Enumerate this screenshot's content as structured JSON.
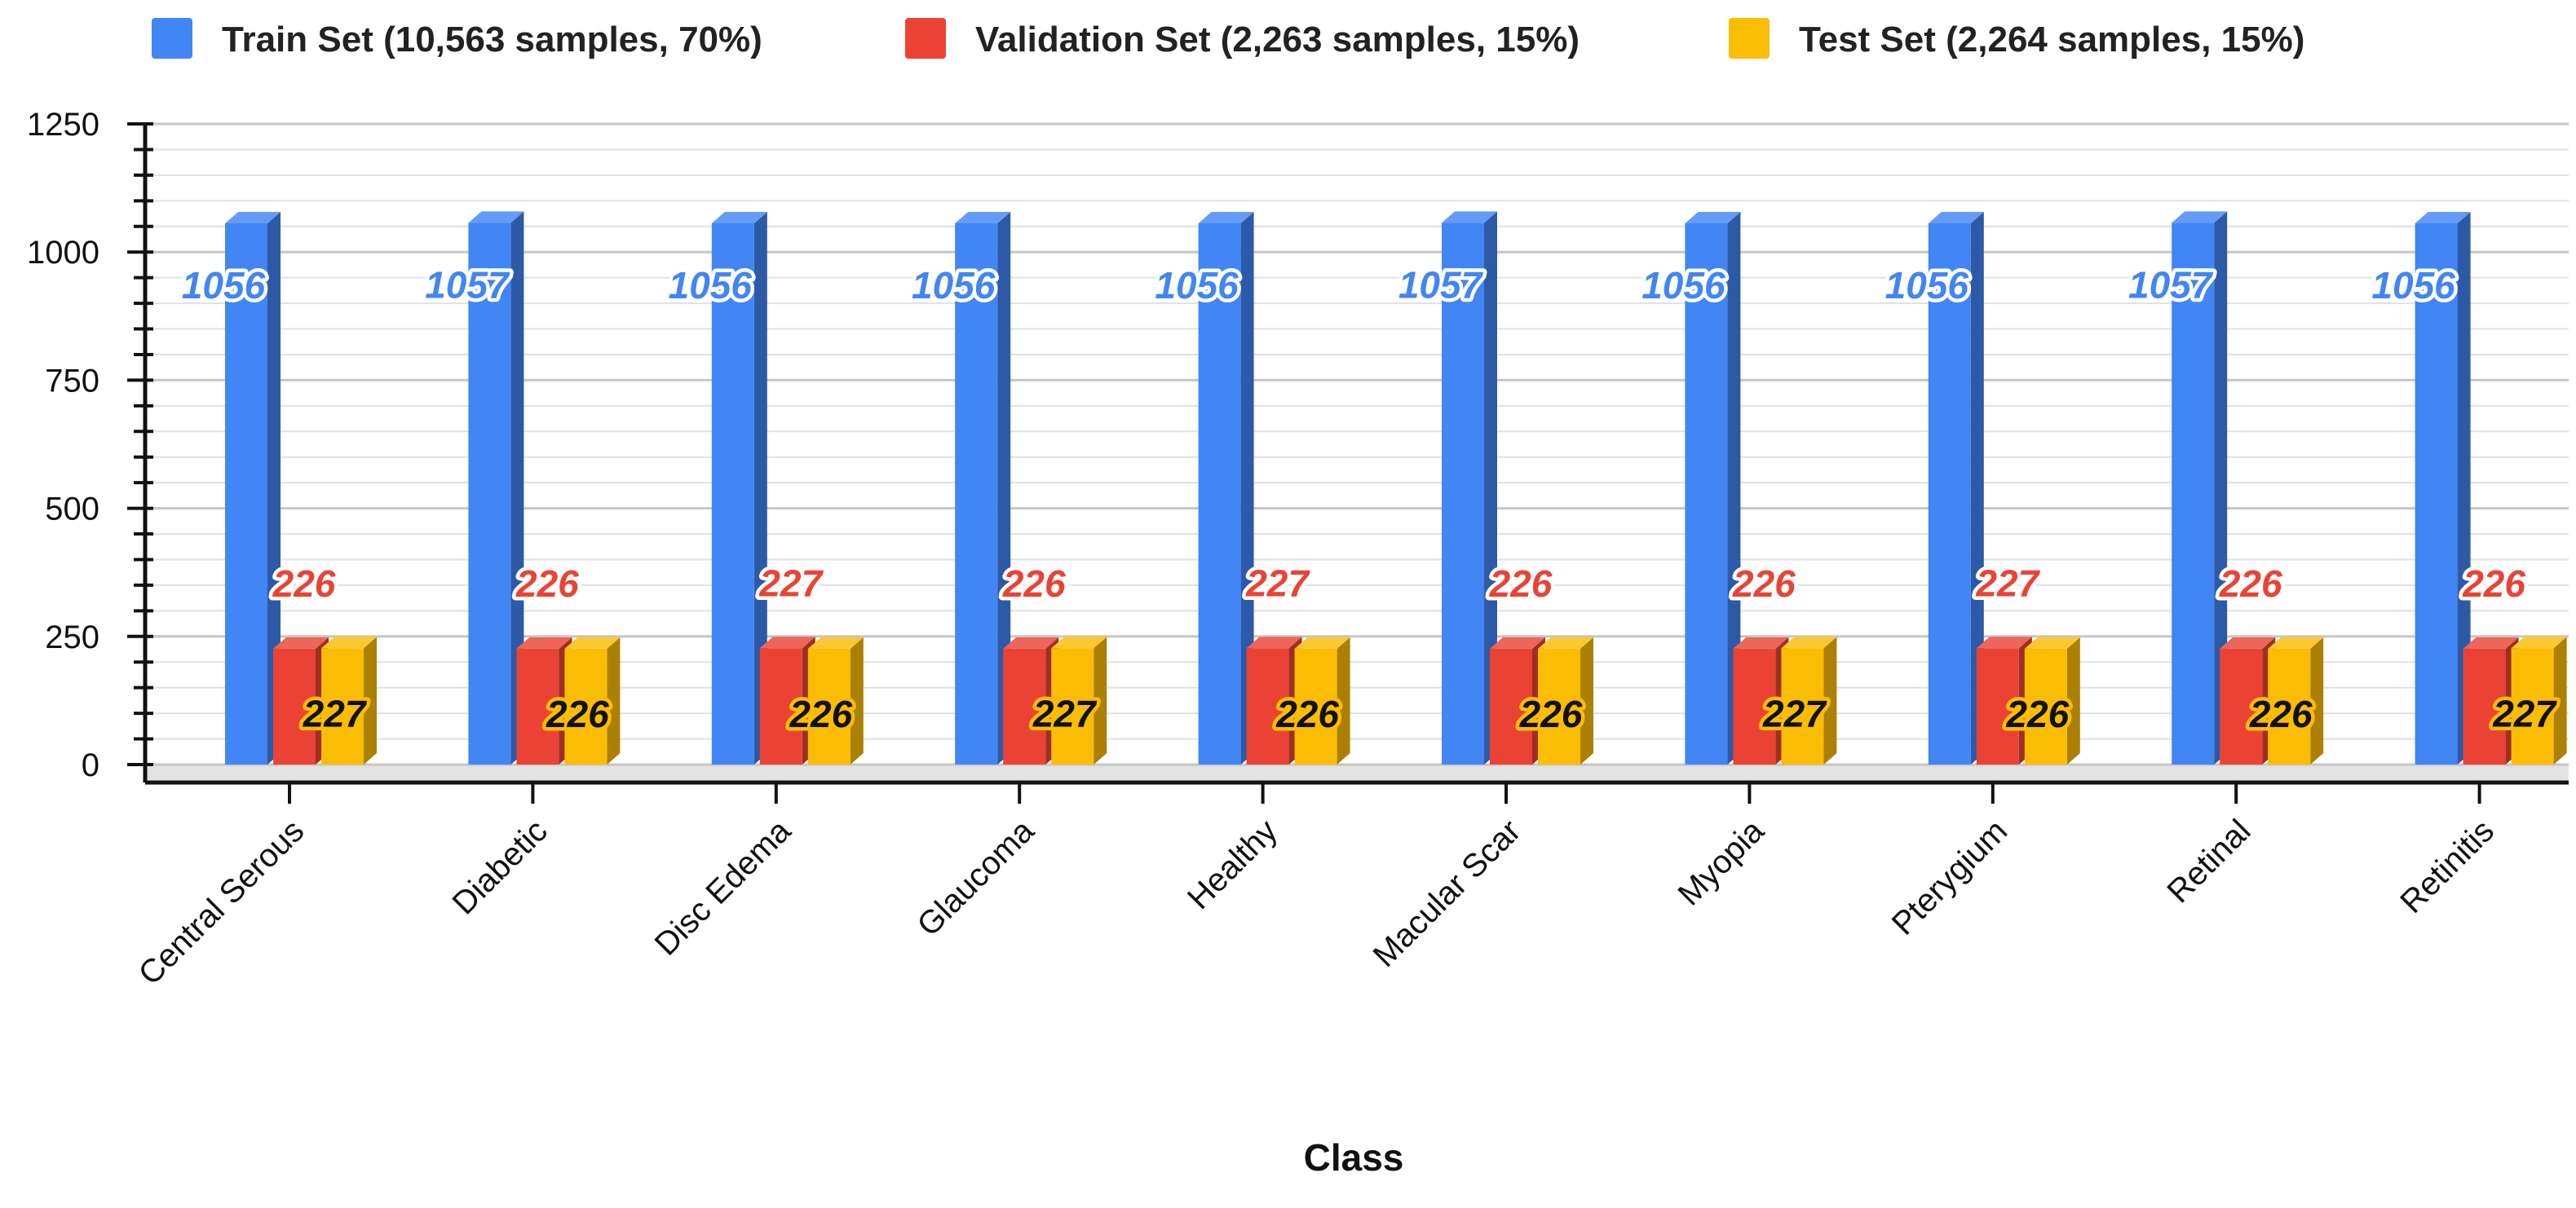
{
  "chart_data": {
    "type": "bar",
    "title": "",
    "xlabel": "Class",
    "ylabel": "",
    "ylim": [
      0,
      1250
    ],
    "y_ticks": [
      0,
      250,
      500,
      750,
      1000,
      1250
    ],
    "grid": true,
    "legend_position": "top",
    "categories": [
      "Central Serous",
      "Diabetic",
      "Disc Edema",
      "Glaucoma",
      "Healthy",
      "Macular Scar",
      "Myopia",
      "Pterygium",
      "Retinal",
      "Retinitis"
    ],
    "series": [
      {
        "name": "Train Set (10,563 samples, 70%)",
        "color": "#4285f4",
        "values": [
          1056,
          1057,
          1056,
          1056,
          1056,
          1057,
          1056,
          1056,
          1057,
          1056
        ]
      },
      {
        "name": "Validation Set (2,263 samples, 15%)",
        "color": "#ea4335",
        "values": [
          226,
          226,
          227,
          226,
          227,
          226,
          226,
          227,
          226,
          226
        ]
      },
      {
        "name": "Test Set (2,264 samples, 15%)",
        "color": "#fbbc04",
        "values": [
          227,
          226,
          226,
          227,
          226,
          226,
          227,
          226,
          226,
          227
        ]
      }
    ]
  }
}
